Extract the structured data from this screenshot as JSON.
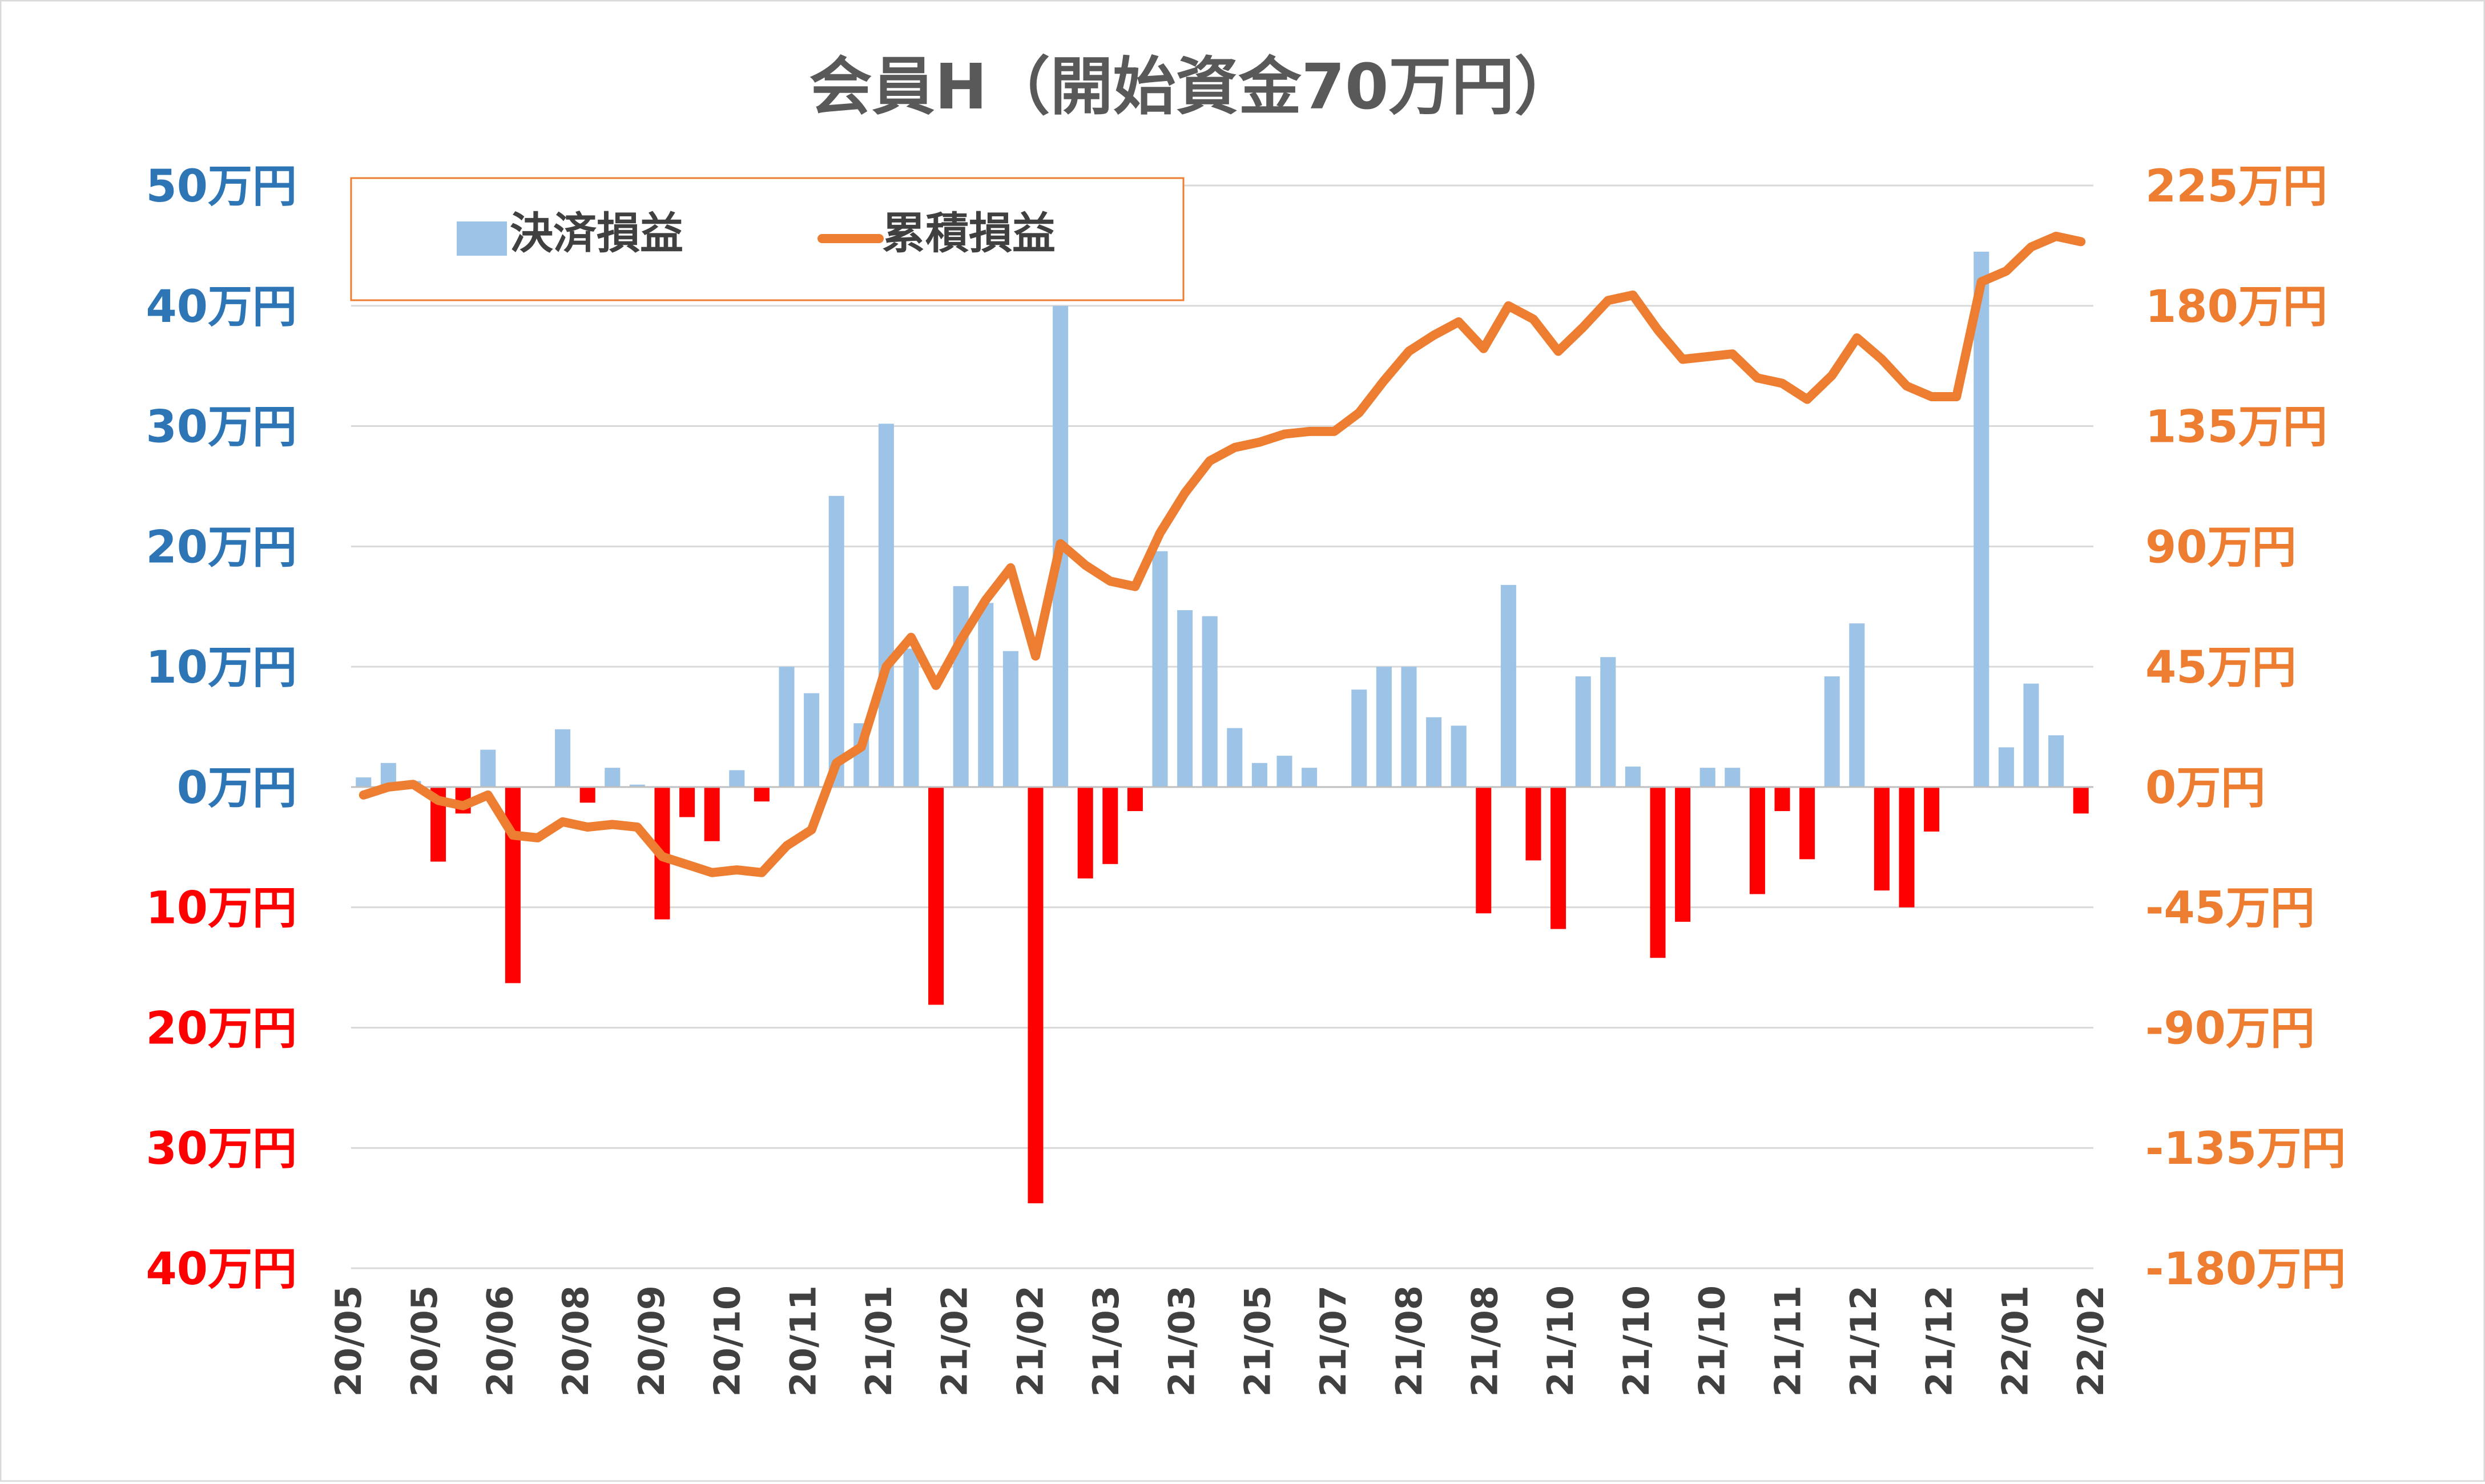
{
  "chart_data": {
    "type": "bar",
    "title": "会員H（開始資金70万円）",
    "legend": {
      "position": "top-left",
      "items": [
        {
          "label": "決済損益",
          "kind": "bar",
          "color": "#9dc3e6"
        },
        {
          "label": "累積損益",
          "kind": "line",
          "color": "#ed7d31"
        }
      ]
    },
    "colors": {
      "bar_positive": "#9dc3e6",
      "bar_negative": "#ff0000",
      "line": "#ed7d31",
      "left_axis_positive": "#2e75b6",
      "left_axis_negative": "#ff0000",
      "right_axis": "#ed7d31",
      "grid": "#d9d9d9",
      "title": "#595959",
      "x_labels": "#404040"
    },
    "grid": true,
    "left_axis": {
      "ylim": [
        -40,
        50
      ],
      "ticks": [
        50,
        40,
        30,
        20,
        10,
        0,
        -10,
        -20,
        -30,
        -40
      ],
      "tick_labels": [
        "50万円",
        "40万円",
        "30万円",
        "20万円",
        "10万円",
        "0万円",
        "10万円",
        "20万円",
        "30万円",
        "40万円"
      ]
    },
    "right_axis": {
      "ylim": [
        -180,
        225
      ],
      "ticks": [
        225,
        180,
        135,
        90,
        45,
        0,
        -45,
        -90,
        -135,
        -180
      ],
      "tick_labels": [
        "225万円",
        "180万円",
        "135万円",
        "90万円",
        "45万円",
        "0万円",
        "-45万円",
        "-90万円",
        "-135万円",
        "-180万円"
      ]
    },
    "x_tick_labels": [
      "20/05",
      "20/05",
      "20/06",
      "20/08",
      "20/09",
      "20/10",
      "20/11",
      "21/01",
      "21/02",
      "21/02",
      "21/03",
      "21/03",
      "21/05",
      "21/07",
      "21/08",
      "21/08",
      "21/10",
      "21/10",
      "21/10",
      "21/11",
      "21/12",
      "21/12",
      "22/01",
      "22/02"
    ],
    "series": [
      {
        "name": "決済損益",
        "kind": "bar",
        "values": [
          0.8,
          2.0,
          0.5,
          -6.2,
          -2.2,
          3.1,
          -16.3,
          0,
          4.8,
          -1.3,
          1.6,
          0.2,
          -11.0,
          -2.5,
          -4.5,
          1.4,
          -1.2,
          10.0,
          7.8,
          24.2,
          5.3,
          30.2,
          11.5,
          -18.1,
          16.7,
          15.3,
          11.3,
          -34.6,
          40.0,
          -7.6,
          -6.4,
          -2.0,
          19.6,
          14.7,
          14.2,
          4.9,
          2.0,
          2.6,
          1.6,
          0,
          8.1,
          10.0,
          10.0,
          5.8,
          5.1,
          -10.5,
          16.8,
          -6.1,
          -11.8,
          9.2,
          10.8,
          1.7,
          -14.2,
          -11.2,
          1.6,
          1.6,
          -8.9,
          -2.0,
          -6.0,
          9.2,
          13.6,
          -8.6,
          -10.0,
          -3.7,
          0,
          44.5,
          3.3,
          8.6,
          4.3,
          -2.2
        ]
      },
      {
        "name": "累積損益",
        "kind": "line",
        "values": [
          -3,
          0,
          1,
          -5,
          -7,
          -3,
          -18,
          -19,
          -13,
          -15,
          -14,
          -15,
          -26,
          -29,
          -32,
          -31,
          -32,
          -22,
          -16,
          9,
          15,
          45,
          56,
          38,
          55,
          70,
          82,
          49,
          91,
          83,
          77,
          75,
          95,
          110,
          122,
          127,
          129,
          132,
          133,
          133,
          140,
          152,
          163,
          169,
          174,
          164,
          180,
          175,
          163,
          172,
          182,
          184,
          171,
          160,
          161,
          162,
          153,
          151,
          145,
          154,
          168,
          160,
          150,
          146,
          146,
          189,
          193,
          202,
          206,
          204
        ]
      }
    ]
  }
}
